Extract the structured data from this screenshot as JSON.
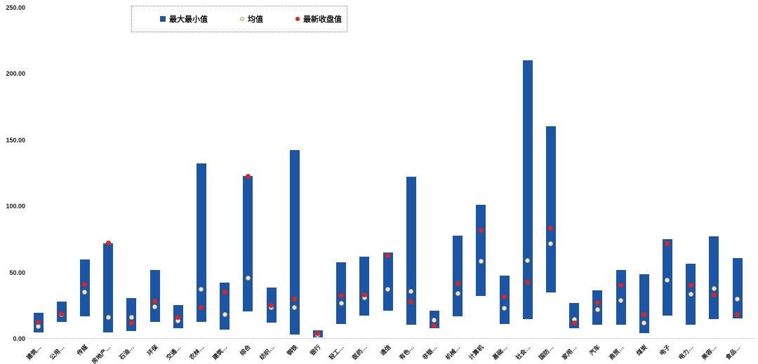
{
  "chart_data": {
    "type": "bar",
    "subtype": "floating-range-bar-with-points",
    "title": "",
    "legend_position": "top-left",
    "grid": false,
    "legend": [
      {
        "label": "最大最小值",
        "marker": "square-icon",
        "color": "#1b55a5"
      },
      {
        "label": "均值",
        "marker": "circle-icon",
        "color": "#f0ebd2"
      },
      {
        "label": "最新收盘值",
        "marker": "circle-icon",
        "color": "#e02321"
      }
    ],
    "y_axis": {
      "min": 0,
      "max": 250,
      "tick_interval": 50,
      "tick_labels": [
        "0.00",
        "50.00",
        "100.00",
        "150.00",
        "200.00",
        "250.00"
      ]
    },
    "categories": [
      "建筑…",
      "公用…",
      "传媒",
      "房地产…",
      "石油…",
      "环保",
      "交通…",
      "农林…",
      "建筑…",
      "综合",
      "纺织…",
      "钢铁",
      "银行",
      "轻工…",
      "医药…",
      "通信",
      "有色…",
      "非银…",
      "机械…",
      "计算机",
      "基础…",
      "社会…",
      "国防…",
      "家用…",
      "汽车",
      "商贸…",
      "煤炭",
      "电子",
      "电力…",
      "美容…",
      "食品…"
    ],
    "series": [
      {
        "name": "最大最小值",
        "type": "range",
        "min": [
          5,
          12.5,
          17,
          5,
          6,
          12.5,
          8,
          12.5,
          7,
          20.5,
          12,
          3,
          1,
          11,
          17.5,
          21,
          10.5,
          8,
          17,
          32.5,
          11,
          15,
          35,
          8,
          10.5,
          10.5,
          4,
          17.5,
          10.5,
          15,
          15.5
        ],
        "max": [
          19.5,
          28,
          60,
          72,
          30.5,
          52,
          25.5,
          132.5,
          42.5,
          122.5,
          38.5,
          142.5,
          6.5,
          57.5,
          62,
          65,
          122,
          21,
          78,
          101,
          47.5,
          210,
          160.5,
          27,
          36.5,
          52,
          48.5,
          75,
          56.5,
          77,
          61
        ]
      },
      {
        "name": "均值",
        "type": "point",
        "values": [
          9,
          18,
          35,
          16,
          16,
          24,
          13.5,
          37.5,
          18,
          46,
          23.5,
          23.5,
          3,
          26.5,
          31,
          37.5,
          35.5,
          14,
          34,
          58.5,
          23,
          59,
          71.5,
          14.5,
          22,
          29,
          12,
          44,
          33.5,
          38,
          30
        ]
      },
      {
        "name": "最新收盘值",
        "type": "point",
        "values": [
          12.5,
          19,
          41,
          72,
          12,
          28.5,
          16,
          23.5,
          35,
          122.5,
          25,
          30,
          4,
          32.5,
          33,
          62.5,
          28,
          10,
          41.5,
          81.5,
          31.5,
          42.5,
          83.5,
          12,
          27,
          40.5,
          18.5,
          71.5,
          40.5,
          33,
          18.5
        ]
      }
    ],
    "colors": {
      "bar": "#1b55a5",
      "mean_dot_fill": "#f0ebd2",
      "mean_dot_border": "#b9a878",
      "close_dot": "#e02321",
      "axis_line": "#d8d8d8",
      "text": "#1a1a1a"
    }
  }
}
